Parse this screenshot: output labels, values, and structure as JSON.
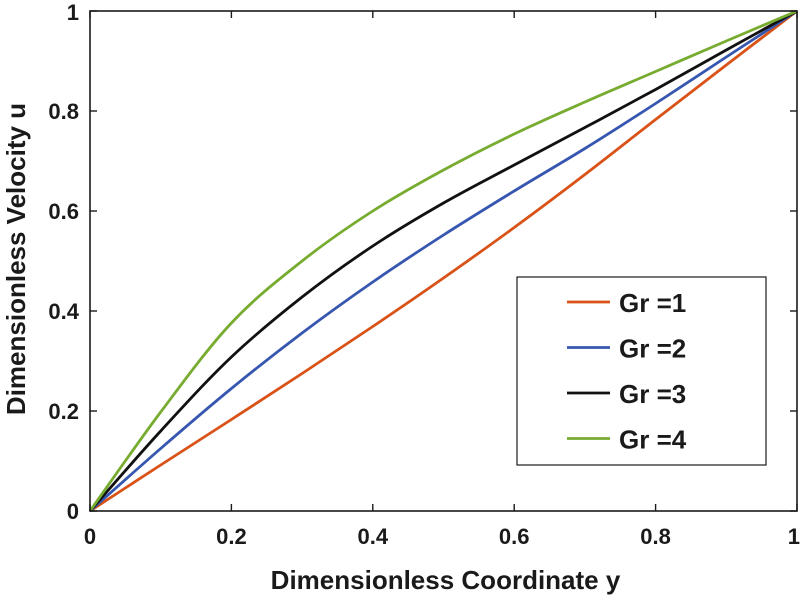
{
  "chart_data": {
    "type": "line",
    "title": "",
    "xlabel": "Dimensionless Coordinate y",
    "ylabel": "Dimensionless Velocity u",
    "xlim": [
      0,
      1
    ],
    "ylim": [
      0,
      1
    ],
    "xticks": [
      0,
      0.2,
      0.4,
      0.6,
      0.8,
      1
    ],
    "yticks": [
      0,
      0.2,
      0.4,
      0.6,
      0.8,
      1
    ],
    "xtick_labels": [
      "0",
      "0.2",
      "0.4",
      "0.6",
      "0.8",
      "1"
    ],
    "ytick_labels": [
      "0",
      "0.2",
      "0.4",
      "0.6",
      "0.8",
      "1"
    ],
    "grid": false,
    "legend_position": "bottom-right",
    "x": [
      0,
      0.1,
      0.2,
      0.3,
      0.4,
      0.5,
      0.6,
      0.7,
      0.8,
      0.9,
      1.0
    ],
    "series": [
      {
        "name": "Gr =1",
        "color": "#d95319",
        "values": [
          0,
          0.092,
          0.183,
          0.275,
          0.369,
          0.466,
          0.567,
          0.673,
          0.783,
          0.892,
          1.0
        ]
      },
      {
        "name": "Gr =2",
        "color": "#3656b0",
        "values": [
          0,
          0.125,
          0.245,
          0.356,
          0.458,
          0.552,
          0.64,
          0.725,
          0.815,
          0.908,
          1.0
        ]
      },
      {
        "name": "Gr =3",
        "color": "#111111",
        "values": [
          0,
          0.16,
          0.308,
          0.428,
          0.53,
          0.616,
          0.692,
          0.767,
          0.843,
          0.922,
          1.0
        ]
      },
      {
        "name": "Gr =4",
        "color": "#77ac30",
        "values": [
          0,
          0.198,
          0.376,
          0.5,
          0.6,
          0.682,
          0.754,
          0.818,
          0.879,
          0.94,
          1.0
        ]
      }
    ]
  }
}
